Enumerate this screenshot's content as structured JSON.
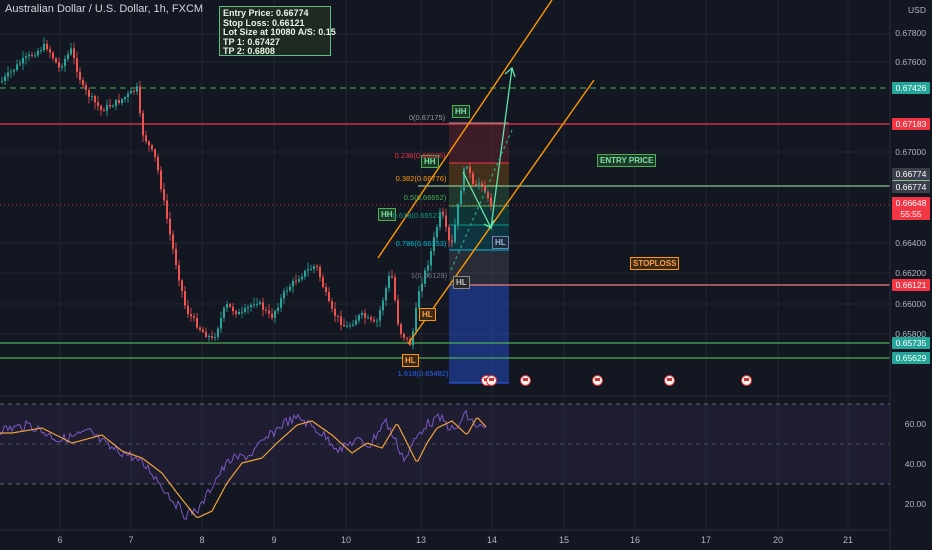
{
  "chart_header": {
    "title": "Australian Dollar / U.S. Dollar, 1h, FXCM"
  },
  "info_box": {
    "lines": [
      "Entry Price: 0.66774",
      "Stop Loss: 0.66121",
      "Lot Size at 10080 A/S: 0.15",
      "TP 1: 0.67427",
      "TP 2:  0.6808"
    ]
  },
  "price_axis": {
    "currency": "USD",
    "ticks": [
      "0.67800",
      "0.67600",
      "0.67000",
      "0.66400",
      "0.66200",
      "0.66000",
      "0.65800"
    ],
    "badges": [
      {
        "label": "0.67426",
        "color": "#26a69a"
      },
      {
        "label": "0.67183",
        "color": "#f23645"
      },
      {
        "label": "0.66774",
        "color": "#3a3f4b"
      },
      {
        "label": "0.66774",
        "color": "#3a3f4b"
      },
      {
        "label": "0.66648",
        "color": "#f23645"
      },
      {
        "label": "55:55",
        "color": "#f23645"
      },
      {
        "label": "0.66121",
        "color": "#f23645"
      },
      {
        "label": "0.65735",
        "color": "#26a69a"
      },
      {
        "label": "0.65629",
        "color": "#26a69a"
      }
    ]
  },
  "rsi_axis": {
    "ticks": [
      "60.00",
      "40.00",
      "20.00"
    ]
  },
  "time_axis": {
    "ticks": [
      "6",
      "7",
      "8",
      "9",
      "10",
      "13",
      "14",
      "15",
      "16",
      "17",
      "20",
      "21"
    ]
  },
  "annotations": {
    "entry_label": "ENTRY PRICE",
    "stop_label": "STOPLOSS",
    "swings": [
      "HH",
      "HH",
      "HH",
      "HL",
      "HL",
      "HL",
      "HL"
    ]
  },
  "fib_levels": [
    {
      "label": "0(0.67175)",
      "color": "#9598a1"
    },
    {
      "label": "0.236(0.66928)",
      "color": "#f23645"
    },
    {
      "label": "0.382(0.66776)",
      "color": "#ff9800"
    },
    {
      "label": "0.5(0.66652)",
      "color": "#4caf50"
    },
    {
      "label": "0.618(0.66527)",
      "color": "#089981"
    },
    {
      "label": "0.786(0.66353)",
      "color": "#00bcd4"
    },
    {
      "label": "1(0.66129)",
      "color": "#787b86"
    },
    {
      "label": "1.618(0.65482)",
      "color": "#2962ff"
    }
  ],
  "colors": {
    "bull": "#26a69a",
    "bear": "#ef5350",
    "channel": "#ff9800",
    "projection": "#5ee6a8",
    "rsi": "#7e57c2",
    "rsi_ma": "#f0a13a"
  }
}
